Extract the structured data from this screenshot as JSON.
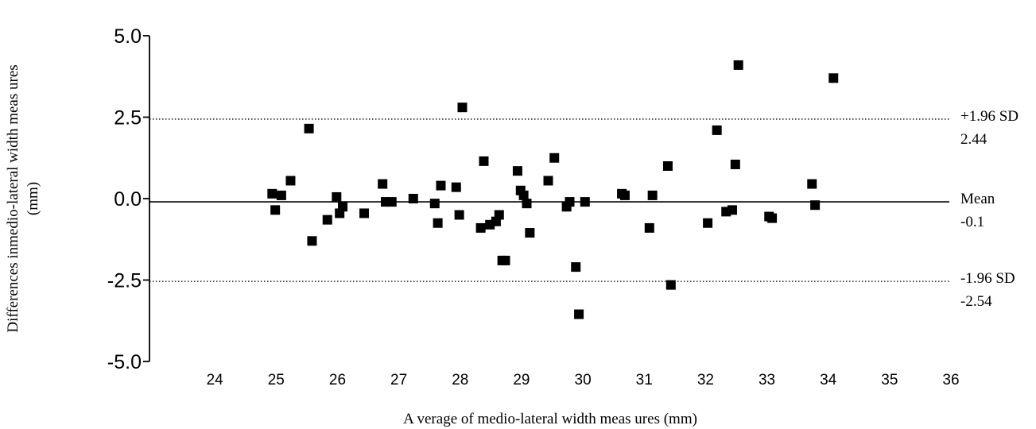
{
  "chart_data": {
    "type": "scatter",
    "title": "",
    "xlabel": "A verage of medio-lateral width meas ures (mm)",
    "ylabel": [
      "Differences inmedio-lateral width  meas ures",
      "(mm)"
    ],
    "xlim": [
      23,
      36
    ],
    "ylim": [
      -5,
      5
    ],
    "x_ticks": [
      "24",
      "25",
      "26",
      "27",
      "28",
      "29",
      "30",
      "31",
      "32",
      "33",
      "34",
      "35",
      "36"
    ],
    "y_ticks": [
      "5.0",
      "2.5",
      "0.0",
      "-2.5",
      "-5.0"
    ],
    "grid": false,
    "marker": "square",
    "marker_color": "#000000",
    "reference_lines": [
      {
        "label": "+1.96 SD",
        "value_label": "2.44",
        "y": 2.44,
        "style": "dotted"
      },
      {
        "label": "Mean",
        "value_label": "-0.1",
        "y": -0.1,
        "style": "solid"
      },
      {
        "label": "-1.96 SD",
        "value_label": "-2.54",
        "y": -2.54,
        "style": "dotted"
      }
    ],
    "points": [
      [
        25.0,
        0.15
      ],
      [
        25.05,
        -0.35
      ],
      [
        25.15,
        0.1
      ],
      [
        25.3,
        0.55
      ],
      [
        25.6,
        2.15
      ],
      [
        25.65,
        -1.3
      ],
      [
        25.9,
        -0.65
      ],
      [
        26.05,
        0.05
      ],
      [
        26.1,
        -0.45
      ],
      [
        26.15,
        -0.25
      ],
      [
        26.5,
        -0.45
      ],
      [
        26.8,
        0.45
      ],
      [
        26.85,
        -0.1
      ],
      [
        26.95,
        -0.1
      ],
      [
        27.3,
        0.0
      ],
      [
        27.65,
        -0.15
      ],
      [
        27.7,
        -0.75
      ],
      [
        27.75,
        0.4
      ],
      [
        28.0,
        0.35
      ],
      [
        28.05,
        -0.5
      ],
      [
        28.1,
        2.8
      ],
      [
        28.4,
        -0.9
      ],
      [
        28.45,
        1.15
      ],
      [
        28.55,
        -0.8
      ],
      [
        28.65,
        -0.7
      ],
      [
        28.7,
        -0.5
      ],
      [
        28.75,
        -1.9
      ],
      [
        28.8,
        -1.9
      ],
      [
        29.0,
        0.85
      ],
      [
        29.05,
        0.25
      ],
      [
        29.1,
        0.1
      ],
      [
        29.15,
        -0.15
      ],
      [
        29.2,
        -1.05
      ],
      [
        29.5,
        0.55
      ],
      [
        29.6,
        1.25
      ],
      [
        29.8,
        -0.25
      ],
      [
        29.85,
        -0.1
      ],
      [
        29.95,
        -2.1
      ],
      [
        30.0,
        -3.55
      ],
      [
        30.1,
        -0.1
      ],
      [
        30.7,
        0.15
      ],
      [
        30.75,
        0.1
      ],
      [
        31.15,
        -0.9
      ],
      [
        31.2,
        0.1
      ],
      [
        31.45,
        1.0
      ],
      [
        31.5,
        -2.65
      ],
      [
        32.1,
        -0.75
      ],
      [
        32.25,
        2.1
      ],
      [
        32.4,
        -0.4
      ],
      [
        32.5,
        -0.35
      ],
      [
        32.55,
        1.05
      ],
      [
        32.6,
        4.1
      ],
      [
        33.1,
        -0.55
      ],
      [
        33.15,
        -0.6
      ],
      [
        33.8,
        0.45
      ],
      [
        33.85,
        -0.2
      ],
      [
        34.15,
        3.7
      ]
    ]
  }
}
